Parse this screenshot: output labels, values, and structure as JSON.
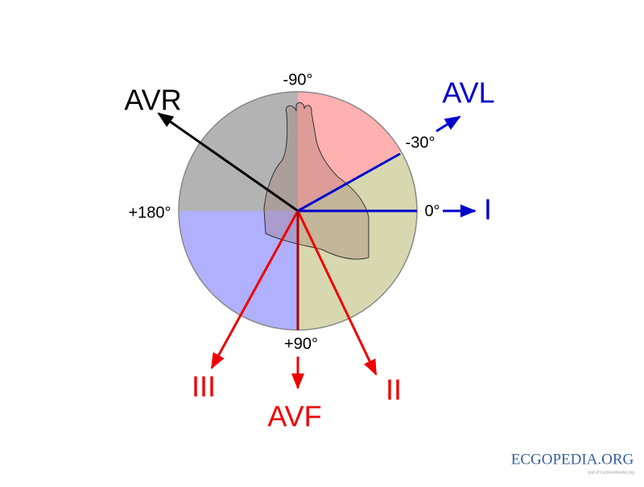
{
  "angles": {
    "top": "-90°",
    "upper_right": "-30°",
    "right": "0°",
    "left": "+180°",
    "bottom": "+90°"
  },
  "leads": {
    "avr": "AVR",
    "avl": "AVL",
    "i": "I",
    "ii": "II",
    "iii": "III",
    "avf": "AVF"
  },
  "logo": {
    "name": "ECGOPEDIA.ORG",
    "tagline": "part of cardionetworks.org"
  }
}
